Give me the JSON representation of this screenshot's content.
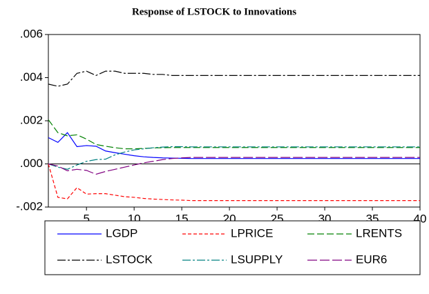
{
  "chart_data": {
    "type": "line",
    "title": "Response of LSTOCK to Innovations",
    "x": [
      1,
      2,
      3,
      4,
      5,
      6,
      7,
      8,
      9,
      10,
      11,
      12,
      13,
      14,
      15,
      16,
      17,
      18,
      19,
      20,
      21,
      22,
      23,
      24,
      25,
      26,
      27,
      28,
      29,
      30,
      31,
      32,
      33,
      34,
      35,
      36,
      37,
      38,
      39,
      40
    ],
    "xlim": [
      1,
      40
    ],
    "xticks": [
      5,
      10,
      15,
      20,
      25,
      30,
      35,
      40
    ],
    "ylim": [
      -0.002,
      0.006
    ],
    "yticks": [
      {
        "value": -0.002,
        "label": "-.002"
      },
      {
        "value": 0,
        "label": ".000"
      },
      {
        "value": 0.002,
        "label": ".002"
      },
      {
        "value": 0.004,
        "label": ".004"
      },
      {
        "value": 0.006,
        "label": ".006"
      }
    ],
    "legend": "bottom",
    "series": [
      {
        "name": "LGDP",
        "color": "#0000ff",
        "dash": "none",
        "values": [
          0.00122,
          0.001,
          0.00145,
          0.0008,
          0.00085,
          0.00082,
          0.0006,
          0.00052,
          0.00045,
          0.00038,
          0.00033,
          0.0003,
          0.00028,
          0.00027,
          0.00026,
          0.00025,
          0.00025,
          0.00025,
          0.00025,
          0.00025,
          0.00025,
          0.00025,
          0.00025,
          0.00025,
          0.00025,
          0.00025,
          0.00025,
          0.00025,
          0.00025,
          0.00025,
          0.00025,
          0.00025,
          0.00025,
          0.00025,
          0.00025,
          0.00025,
          0.00025,
          0.00025,
          0.00025,
          0.00025
        ]
      },
      {
        "name": "LPRICE",
        "color": "#ff0000",
        "dash": "5,3",
        "values": [
          0,
          -0.00155,
          -0.00162,
          -0.0011,
          -0.0014,
          -0.00138,
          -0.00138,
          -0.00145,
          -0.00152,
          -0.00155,
          -0.0016,
          -0.00163,
          -0.00165,
          -0.00167,
          -0.00168,
          -0.0017,
          -0.0017,
          -0.0017,
          -0.0017,
          -0.0017,
          -0.0017,
          -0.0017,
          -0.0017,
          -0.0017,
          -0.0017,
          -0.0017,
          -0.0017,
          -0.0017,
          -0.0017,
          -0.0017,
          -0.0017,
          -0.0017,
          -0.0017,
          -0.0017,
          -0.0017,
          -0.0017,
          -0.0017,
          -0.0017,
          -0.0017,
          -0.0017
        ]
      },
      {
        "name": "LRENTS",
        "color": "#008000",
        "dash": "10,4",
        "values": [
          0.00205,
          0.00145,
          0.0013,
          0.00135,
          0.00115,
          0.0009,
          0.00082,
          0.00075,
          0.0007,
          0.0007,
          0.00072,
          0.00074,
          0.00075,
          0.00076,
          0.00076,
          0.00076,
          0.00076,
          0.00076,
          0.00076,
          0.00076,
          0.00076,
          0.00076,
          0.00076,
          0.00076,
          0.00076,
          0.00076,
          0.00076,
          0.00076,
          0.00076,
          0.00076,
          0.00076,
          0.00076,
          0.00076,
          0.00076,
          0.00076,
          0.00076,
          0.00076,
          0.00076,
          0.00076,
          0.00076
        ]
      },
      {
        "name": "LSTOCK",
        "color": "#000000",
        "dash": "12,3,3,3",
        "values": [
          0.0037,
          0.0036,
          0.0037,
          0.0042,
          0.0043,
          0.0041,
          0.0043,
          0.0043,
          0.0042,
          0.0042,
          0.0042,
          0.00415,
          0.00415,
          0.0041,
          0.0041,
          0.0041,
          0.0041,
          0.0041,
          0.0041,
          0.0041,
          0.0041,
          0.0041,
          0.0041,
          0.0041,
          0.0041,
          0.0041,
          0.0041,
          0.0041,
          0.0041,
          0.0041,
          0.0041,
          0.0041,
          0.0041,
          0.0041,
          0.0041,
          0.0041,
          0.0041,
          0.0041,
          0.0041,
          0.0041
        ]
      },
      {
        "name": "LSUPPLY",
        "color": "#008080",
        "dash": "12,3,3,3",
        "values": [
          0,
          -0.00015,
          -0.00025,
          -5e-05,
          0.00012,
          0.0002,
          0.00022,
          0.00042,
          0.00055,
          0.00065,
          0.0007,
          0.00075,
          0.00078,
          0.0008,
          0.0008,
          0.00079,
          0.00079,
          0.00079,
          0.00079,
          0.00079,
          0.00079,
          0.00079,
          0.00079,
          0.00079,
          0.00079,
          0.00079,
          0.00079,
          0.00079,
          0.00079,
          0.00079,
          0.00079,
          0.00079,
          0.00079,
          0.00079,
          0.00079,
          0.00079,
          0.00079,
          0.00079,
          0.00079,
          0.00079
        ]
      },
      {
        "name": "EUR6",
        "color": "#800080",
        "dash": "14,4",
        "values": [
          0,
          -0.0001,
          -0.00032,
          -0.00025,
          -0.0003,
          -0.00048,
          -0.00035,
          -0.00025,
          -0.00015,
          -5e-05,
          5e-05,
          0.00012,
          0.0002,
          0.00025,
          0.00028,
          0.0003,
          0.0003,
          0.0003,
          0.0003,
          0.0003,
          0.0003,
          0.0003,
          0.0003,
          0.0003,
          0.0003,
          0.0003,
          0.0003,
          0.0003,
          0.0003,
          0.0003,
          0.0003,
          0.0003,
          0.0003,
          0.0003,
          0.0003,
          0.0003,
          0.0003,
          0.0003,
          0.0003,
          0.0003
        ]
      }
    ]
  }
}
